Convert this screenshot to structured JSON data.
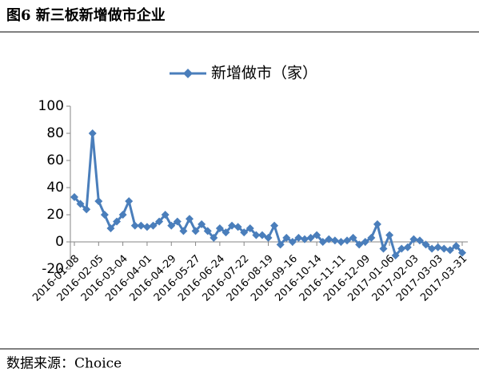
{
  "header": {
    "title": "图6 新三板新增做市企业"
  },
  "chart_data": {
    "type": "line",
    "categories": [
      "2016-01-08",
      null,
      null,
      null,
      "2016-02-05",
      null,
      null,
      null,
      "2016-03-04",
      null,
      null,
      null,
      "2016-04-01",
      null,
      null,
      null,
      "2016-04-29",
      null,
      null,
      null,
      "2016-05-27",
      null,
      null,
      null,
      "2016-06-24",
      null,
      null,
      null,
      "2016-07-22",
      null,
      null,
      null,
      "2016-08-19",
      null,
      null,
      null,
      "2016-09-16",
      null,
      null,
      null,
      "2016-10-14",
      null,
      null,
      null,
      "2016-11-11",
      null,
      null,
      null,
      "2016-12-09",
      null,
      null,
      null,
      "2017-01-06",
      null,
      null,
      null,
      "2017-02-03",
      null,
      null,
      null,
      "2017-03-03",
      null,
      null,
      null,
      "2017-03-31"
    ],
    "series": [
      {
        "name": "新增做市（家）",
        "color": "#4a7ebb",
        "values": [
          33,
          28,
          24,
          80,
          30,
          20,
          10,
          15,
          20,
          30,
          12,
          12,
          11,
          12,
          15,
          20,
          12,
          15,
          8,
          17,
          8,
          13,
          8,
          3,
          10,
          7,
          12,
          11,
          7,
          10,
          5,
          5,
          3,
          12,
          -2,
          3,
          0,
          3,
          2,
          3,
          5,
          0,
          2,
          1,
          0,
          1,
          3,
          -2,
          0,
          3,
          13,
          -5,
          5,
          -10,
          -5,
          -4,
          2,
          1,
          -2,
          -5,
          -4,
          -5,
          -6,
          -3,
          -8
        ]
      }
    ],
    "ylim": [
      -20,
      100
    ],
    "yticks": [
      -20,
      0,
      20,
      40,
      60,
      80,
      100
    ],
    "legend": "top"
  },
  "footer": {
    "source": "数据来源：Choice"
  }
}
